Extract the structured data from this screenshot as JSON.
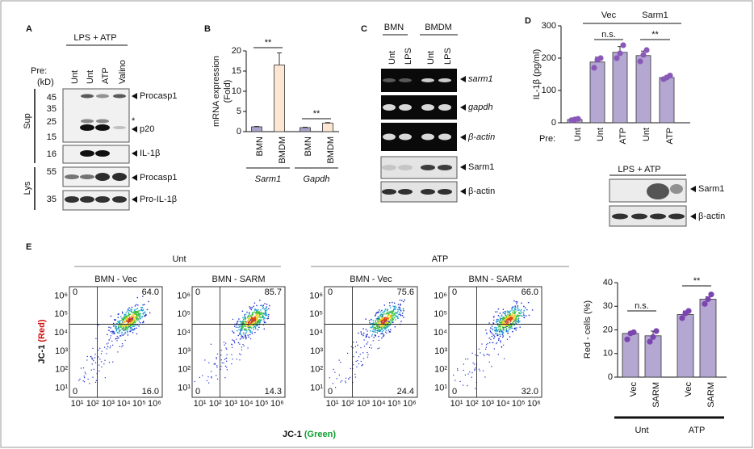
{
  "panel_a": {
    "label": "A",
    "treatment": "LPS + ATP",
    "pre_label": "Pre:",
    "unit": "(kD)",
    "lanes": [
      "Unt",
      "Unt",
      "ATP",
      "Valino"
    ],
    "fractions": [
      "Sup",
      "Lys"
    ],
    "markers": [
      45,
      35,
      25,
      15,
      16,
      55,
      35
    ],
    "bands": [
      "Procasp1",
      "*",
      "p20",
      "IL-1β",
      "Procasp1",
      "Pro-IL-1β"
    ]
  },
  "panel_c": {
    "label": "C",
    "groups": [
      "BMN",
      "BMDM"
    ],
    "lanes": [
      "Unt",
      "LPS",
      "Unt",
      "LPS"
    ],
    "bands": [
      "sarm1",
      "gapdh",
      "β-actin",
      "Sarm1",
      "β-actin"
    ]
  },
  "panel_d_blot": {
    "treatment": "LPS + ATP",
    "bands": [
      "Sarm1",
      "β-actin"
    ]
  },
  "panel_e_flow": {
    "label": "E",
    "conditions": [
      "Unt",
      "ATP"
    ],
    "plots": [
      {
        "title": "BMN - Vec",
        "quadrants": [
          "0",
          "64.0",
          "0",
          "16.0"
        ]
      },
      {
        "title": "BMN - SARM",
        "quadrants": [
          "0",
          "85.7",
          "0",
          "14.3"
        ]
      },
      {
        "title": "BMN - Vec",
        "quadrants": [
          "0",
          "75.6",
          "0",
          "24.4"
        ]
      },
      {
        "title": "BMN - SARM",
        "quadrants": [
          "0",
          "66.0",
          "0",
          "32.0"
        ]
      }
    ],
    "ticks": [
      "10¹",
      "10²",
      "10³",
      "10⁴",
      "10⁵",
      "10⁶"
    ],
    "y_label": [
      "JC-1",
      "(Red)"
    ],
    "x_label": [
      "JC-1",
      "(Green)"
    ]
  },
  "chart_data": [
    {
      "type": "bar",
      "label": "B",
      "ylabel": [
        "mRNA expression",
        "(Fold)"
      ],
      "categories": [
        "BMN",
        "BMDM",
        "BMN",
        "BMDM"
      ],
      "groups": [
        "Sarm1",
        "Gapdh"
      ],
      "values": [
        1.2,
        16.5,
        1,
        2.1
      ],
      "errors": [
        0.1,
        3,
        0.1,
        0.15
      ],
      "colors": [
        "#aaa3cb",
        "#fde7d2",
        "#aaa3cb",
        "#fde7d2"
      ],
      "ylim": [
        0,
        20
      ],
      "yticks": [
        0,
        5,
        10,
        15,
        20
      ],
      "annotations": [
        "**",
        "**"
      ]
    },
    {
      "type": "bar",
      "label": "D",
      "ylabel": [
        "IL-1β (pg/ml)"
      ],
      "pre_label": "Pre:",
      "categories": [
        "Unt",
        "Unt",
        "ATP",
        "Unt",
        "ATP"
      ],
      "groups": [
        "Vec",
        "Sarm1"
      ],
      "values": [
        10,
        188,
        218,
        208,
        140
      ],
      "errors": [
        2,
        15,
        18,
        14,
        5
      ],
      "points": [
        [
          8,
          10,
          12
        ],
        [
          170,
          195,
          200
        ],
        [
          200,
          215,
          240
        ],
        [
          190,
          210,
          225
        ],
        [
          135,
          140,
          146
        ]
      ],
      "color": "#b4a8d3",
      "point_color": "#8a58b8",
      "ylim": [
        0,
        300
      ],
      "yticks": [
        0,
        100,
        200,
        300
      ],
      "annotations": [
        "n.s.",
        "**"
      ]
    },
    {
      "type": "bar",
      "ylabel": [
        "Red - cells (%)"
      ],
      "categories": [
        "Vec",
        "SARM",
        "Vec",
        "SARM"
      ],
      "groups": [
        "Unt",
        "ATP"
      ],
      "values": [
        18.5,
        17.5,
        26.5,
        33
      ],
      "errors": [
        0.5,
        2,
        1.5,
        1
      ],
      "points": [
        [
          16,
          18.5,
          19
        ],
        [
          15,
          17,
          19.5
        ],
        [
          25,
          27,
          28
        ],
        [
          31,
          33,
          35
        ]
      ],
      "color": "#b4a8d3",
      "point_color": "#7b45b0",
      "ylim": [
        0,
        40
      ],
      "yticks": [
        0,
        10,
        20,
        30,
        40
      ],
      "annotations": [
        "n.s.",
        "**"
      ]
    }
  ]
}
